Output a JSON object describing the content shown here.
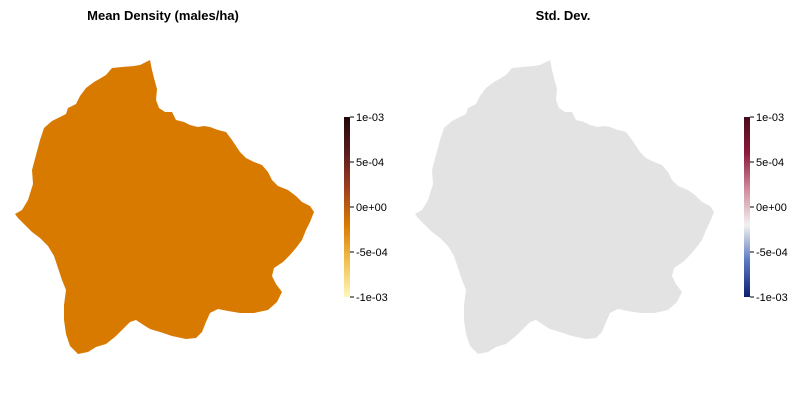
{
  "panels": [
    {
      "title": "Mean Density (males/ha)",
      "fill_color": "#d97a00",
      "legend": {
        "ticks": [
          "1e-03",
          "5e-04",
          "0e+00",
          "-5e-04",
          "-1e-03"
        ],
        "colors": [
          "#fff7bc",
          "#f0c050",
          "#d97a00",
          "#a04020",
          "#5a1a20",
          "#200808"
        ]
      }
    },
    {
      "title": "Std. Dev.",
      "fill_color": "#e3e3e3",
      "legend": {
        "ticks": [
          "1e-03",
          "5e-04",
          "0e+00",
          "-5e-04",
          "-1e-03"
        ],
        "colors": [
          "#0d1f6e",
          "#5a78c0",
          "#f2f2f2",
          "#d08a9a",
          "#8a1a3a",
          "#4a0a1a"
        ]
      }
    }
  ]
}
